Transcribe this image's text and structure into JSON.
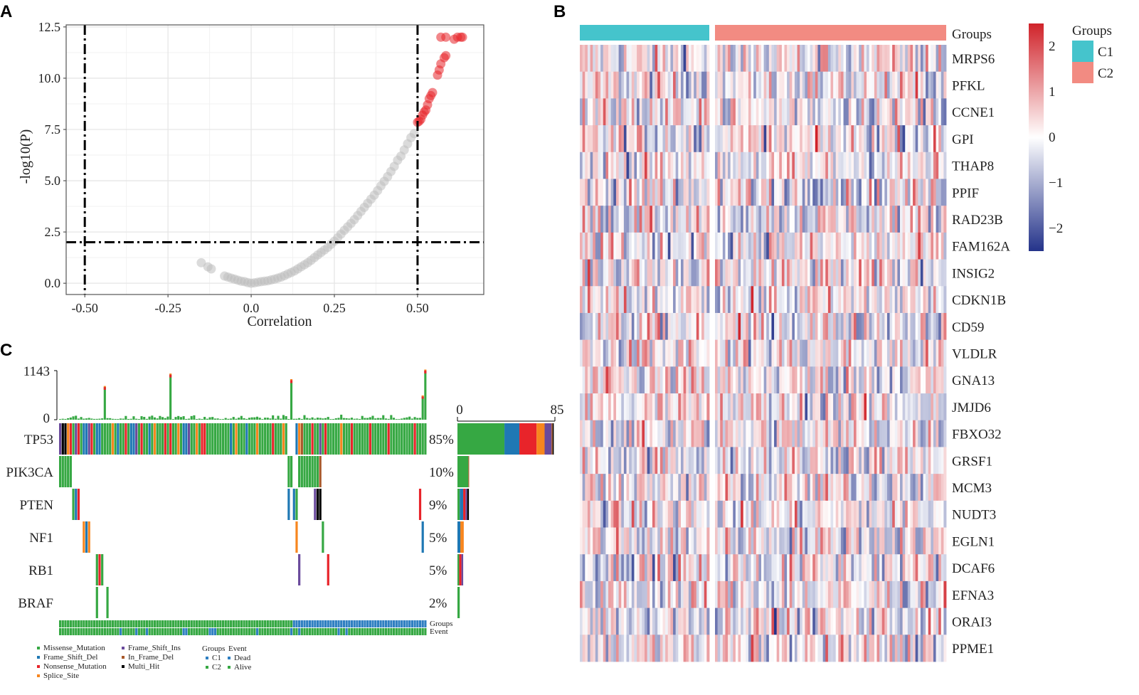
{
  "panel_labels": {
    "a": "A",
    "b": "B",
    "c": "C"
  },
  "chart_data": [
    {
      "type": "scatter",
      "panel": "A",
      "xlabel": "Correlation",
      "ylabel": "-log10(P)",
      "xlim": [
        -0.556,
        0.699
      ],
      "ylim": [
        -0.55,
        12.6
      ],
      "x_ticks": [
        "-0.50",
        "-0.25",
        "0.0",
        "0.25",
        "0.50"
      ],
      "x_tick_values": [
        -0.5,
        -0.25,
        0,
        0.25,
        0.5
      ],
      "y_ticks": [
        "0.0",
        "2.5",
        "5.0",
        "7.5",
        "10.0",
        "12.5"
      ],
      "y_tick_values": [
        0,
        2.5,
        5,
        7.5,
        10,
        12.5
      ],
      "grid": true,
      "threshold_lines": {
        "x": [
          -0.5,
          0.5
        ],
        "y": 2
      },
      "colors": {
        "nonsignificant": "#bdbdbd",
        "significant": "#e8242a"
      },
      "series": [
        {
          "name": "nonsignificant",
          "points": [
            [
              -0.15,
              1.0
            ],
            [
              -0.13,
              0.8
            ],
            [
              -0.12,
              0.7
            ],
            [
              -0.08,
              0.35
            ],
            [
              -0.07,
              0.3
            ],
            [
              -0.06,
              0.25
            ],
            [
              -0.05,
              0.2
            ],
            [
              -0.04,
              0.15
            ],
            [
              -0.03,
              0.1
            ],
            [
              -0.02,
              0.08
            ],
            [
              -0.01,
              0.03
            ],
            [
              0,
              0
            ],
            [
              0.01,
              0.02
            ],
            [
              0.02,
              0.05
            ],
            [
              0.03,
              0.08
            ],
            [
              0.04,
              0.1
            ],
            [
              0.05,
              0.12
            ],
            [
              0.06,
              0.16
            ],
            [
              0.07,
              0.2
            ],
            [
              0.08,
              0.25
            ],
            [
              0.09,
              0.3
            ],
            [
              0.1,
              0.37
            ],
            [
              0.11,
              0.45
            ],
            [
              0.12,
              0.52
            ],
            [
              0.13,
              0.6
            ],
            [
              0.14,
              0.7
            ],
            [
              0.15,
              0.8
            ],
            [
              0.16,
              0.9
            ],
            [
              0.17,
              1.0
            ],
            [
              0.18,
              1.12
            ],
            [
              0.19,
              1.25
            ],
            [
              0.2,
              1.38
            ],
            [
              0.21,
              1.5
            ],
            [
              0.22,
              1.62
            ],
            [
              0.23,
              1.75
            ],
            [
              0.24,
              1.9
            ],
            [
              0.25,
              2.05
            ],
            [
              0.26,
              2.22
            ],
            [
              0.27,
              2.4
            ],
            [
              0.28,
              2.58
            ],
            [
              0.29,
              2.75
            ],
            [
              0.3,
              2.92
            ],
            [
              0.31,
              3.1
            ],
            [
              0.32,
              3.3
            ],
            [
              0.33,
              3.5
            ],
            [
              0.34,
              3.7
            ],
            [
              0.35,
              3.9
            ],
            [
              0.36,
              4.1
            ],
            [
              0.37,
              4.3
            ],
            [
              0.38,
              4.52
            ],
            [
              0.39,
              4.75
            ],
            [
              0.4,
              4.97
            ],
            [
              0.41,
              5.2
            ],
            [
              0.42,
              5.45
            ],
            [
              0.43,
              5.7
            ],
            [
              0.44,
              6.0
            ],
            [
              0.45,
              6.2
            ],
            [
              0.46,
              6.5
            ],
            [
              0.47,
              6.8
            ],
            [
              0.48,
              7.1
            ],
            [
              0.49,
              7.3
            ]
          ]
        },
        {
          "name": "significant",
          "points": [
            [
              0.5,
              7.85
            ],
            [
              0.505,
              7.9
            ],
            [
              0.51,
              8.0
            ],
            [
              0.515,
              8.2
            ],
            [
              0.52,
              8.35
            ],
            [
              0.525,
              8.45
            ],
            [
              0.53,
              8.7
            ],
            [
              0.535,
              9.0
            ],
            [
              0.54,
              9.15
            ],
            [
              0.545,
              9.3
            ],
            [
              0.56,
              10.15
            ],
            [
              0.565,
              10.4
            ],
            [
              0.57,
              10.7
            ],
            [
              0.58,
              11.0
            ],
            [
              0.585,
              11.1
            ],
            [
              0.57,
              12.0
            ],
            [
              0.585,
              12.0
            ],
            [
              0.61,
              11.9
            ],
            [
              0.62,
              12.0
            ],
            [
              0.63,
              12.0
            ],
            [
              0.635,
              12.0
            ]
          ]
        }
      ]
    },
    {
      "type": "heatmap",
      "panel": "B",
      "genes": [
        "MRPS6",
        "PFKL",
        "CCNE1",
        "GPI",
        "THAP8",
        "PPIF",
        "RAD23B",
        "FAM162A",
        "INSIG2",
        "CDKN1B",
        "CD59",
        "VLDLR",
        "GNA13",
        "JMJD6",
        "FBXO32",
        "GRSF1",
        "MCM3",
        "NUDT3",
        "EGLN1",
        "DCAF6",
        "EFNA3",
        "ORAI3",
        "PPME1"
      ],
      "annotation_label": "Groups",
      "groups": [
        {
          "name": "C1",
          "n_samples": 50,
          "color": "#45c4cc"
        },
        {
          "name": "C2",
          "n_samples": 90,
          "color": "#f28b82"
        }
      ],
      "value_range": [
        -2.5,
        2.5
      ],
      "colorbar_ticks": [
        "2",
        "1",
        "0",
        "−1",
        "−2"
      ],
      "colorbar_tick_values": [
        2,
        1,
        0,
        -1,
        -2
      ],
      "colors": {
        "low": "#24338a",
        "mid": "#ffffff",
        "high": "#d0232a"
      },
      "legend": {
        "title": "Groups",
        "items": [
          "C1",
          "C2"
        ]
      }
    },
    {
      "type": "bar",
      "panel": "C",
      "subtype": "oncoplot",
      "n_samples": 140,
      "top_axis": {
        "max_label": "1143",
        "min_label": "0",
        "max": 1143
      },
      "top_spikes": [
        [
          17,
          760
        ],
        [
          42,
          1050
        ],
        [
          88,
          920
        ],
        [
          138,
          540
        ],
        [
          139,
          1143
        ]
      ],
      "side_axis": {
        "min_label": "0",
        "max_label": "85",
        "max": 85
      },
      "mutation_types": [
        {
          "code": "M",
          "name": "Missense_Mutation",
          "color": "#36a843"
        },
        {
          "code": "D",
          "name": "Frame_Shift_Del",
          "color": "#1f78b4"
        },
        {
          "code": "N",
          "name": "Nonsense_Mutation",
          "color": "#e8242a"
        },
        {
          "code": "S",
          "name": "Splice_Site",
          "color": "#f7861e"
        },
        {
          "code": "I",
          "name": "Frame_Shift_Ins",
          "color": "#6a4a9c"
        },
        {
          "code": "F",
          "name": "In_Frame_Del",
          "color": "#a8582a"
        },
        {
          "code": "H",
          "name": "Multi_Hit",
          "color": "#000000"
        }
      ],
      "genes": [
        {
          "name": "TP53",
          "pct": "85%",
          "pattern": "IHHSNMINMDDINMDDMMMMSMDMMNMDDIMNMMDMSMMMNMNMMSMDDIMMSMNNMMMMMMMMMDMSMMMDMMMSMMMMMNMMMSM...DSFMMMNMMIMNMMMMMSMMMNMMMMMMNMMMMMMNMMMMMMMMMNMMMM",
          "side_counts": {
            "M": 41,
            "D": 13,
            "N": 15,
            "S": 7,
            "I": 6,
            "F": 1,
            "H": 1
          }
        },
        {
          "name": "PIK3CA",
          "pct": "10%",
          "hits": [
            [
              0,
              "M"
            ],
            [
              1,
              "M"
            ],
            [
              2,
              "M"
            ],
            [
              3,
              "M"
            ],
            [
              4,
              "M"
            ],
            [
              87,
              "M"
            ],
            [
              88,
              "M"
            ],
            [
              91,
              "M"
            ],
            [
              92,
              "M"
            ],
            [
              93,
              "M"
            ],
            [
              94,
              "M"
            ],
            [
              95,
              "M"
            ],
            [
              96,
              "M"
            ],
            [
              97,
              "M"
            ],
            [
              98,
              "M"
            ],
            [
              99,
              "F"
            ]
          ],
          "side_counts": {
            "M": 9.5,
            "F": 0.7
          }
        },
        {
          "name": "PTEN",
          "pct": "9%",
          "hits": [
            [
              5,
              "M"
            ],
            [
              6,
              "D"
            ],
            [
              7,
              "N"
            ],
            [
              87,
              "D"
            ],
            [
              89,
              "D"
            ],
            [
              90,
              "M"
            ],
            [
              97,
              "I"
            ],
            [
              98,
              "H"
            ],
            [
              99,
              "H"
            ],
            [
              137,
              "N"
            ]
          ],
          "side_counts": {
            "M": 2,
            "D": 3,
            "N": 2,
            "I": 1.5,
            "H": 1.5
          }
        },
        {
          "name": "NF1",
          "pct": "5%",
          "hits": [
            [
              9,
              "S"
            ],
            [
              10,
              "D"
            ],
            [
              11,
              "S"
            ],
            [
              90,
              "S"
            ],
            [
              100,
              "M"
            ],
            [
              138,
              "D"
            ]
          ],
          "side_counts": {
            "D": 2.5,
            "S": 3
          }
        },
        {
          "name": "RB1",
          "pct": "5%",
          "hits": [
            [
              14,
              "M"
            ],
            [
              15,
              "N"
            ],
            [
              16,
              "M"
            ],
            [
              91,
              "I"
            ],
            [
              102,
              "N"
            ]
          ],
          "side_counts": {
            "M": 1.5,
            "N": 2,
            "I": 1.5
          }
        },
        {
          "name": "BRAF",
          "pct": "2%",
          "hits": [
            [
              14,
              "M"
            ],
            [
              18,
              "M"
            ]
          ],
          "side_counts": {
            "M": 2
          }
        }
      ],
      "annotation_rows": {
        "groups_label": "Groups",
        "event_label": "Event",
        "groups_c2_count": 89,
        "event_dead_samples": [
          23,
          29,
          33,
          47,
          48,
          57,
          58,
          59,
          75,
          88,
          91,
          106,
          109
        ]
      },
      "legend": {
        "groups_title": "Groups",
        "event_title": "Event",
        "groups_items": [
          {
            "label": "C1",
            "color": "#2f7fc1"
          },
          {
            "label": "C2",
            "color": "#36a843"
          }
        ],
        "event_items": [
          {
            "label": "Dead",
            "color": "#2f7fc1"
          },
          {
            "label": "Alive",
            "color": "#36a843"
          }
        ]
      }
    }
  ]
}
